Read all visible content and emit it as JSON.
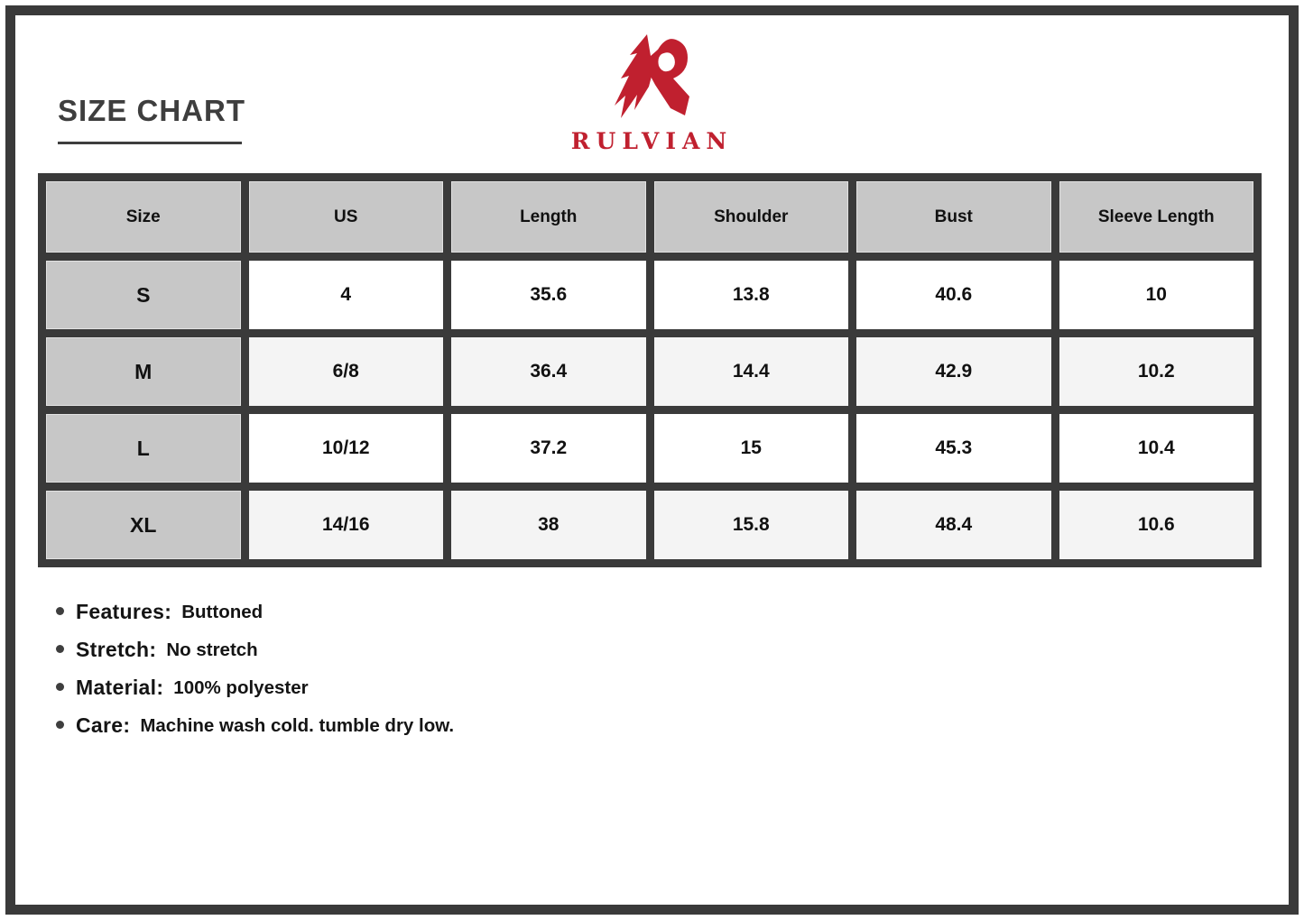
{
  "page_title": "SIZE CHART",
  "brand": {
    "name": "RULVIAN",
    "logo_icon": "angular-r-monogram",
    "color": "#c0202f"
  },
  "chart_data": {
    "type": "table",
    "title": "SIZE CHART",
    "columns": [
      "Size",
      "US",
      "Length",
      "Shoulder",
      "Bust",
      "Sleeve Length"
    ],
    "rows": [
      [
        "S",
        "4",
        "35.6",
        "13.8",
        "40.6",
        "10"
      ],
      [
        "M",
        "6/8",
        "36.4",
        "14.4",
        "42.9",
        "10.2"
      ],
      [
        "L",
        "10/12",
        "37.2",
        "15",
        "45.3",
        "10.4"
      ],
      [
        "XL",
        "14/16",
        "38",
        "15.8",
        "48.4",
        "10.6"
      ]
    ]
  },
  "details": [
    {
      "label": "Features:",
      "value": "Buttoned"
    },
    {
      "label": "Stretch:",
      "value": "No stretch"
    },
    {
      "label": "Material:",
      "value": "100% polyester"
    },
    {
      "label": "Care:",
      "value": "Machine wash cold. tumble dry low."
    }
  ],
  "colors": {
    "frame_and_grid": "#3a3a3a",
    "header_cell": "#c7c7c7",
    "alt_row": "#f4f4f4",
    "brand_red": "#c0202f",
    "text": "#141414"
  }
}
